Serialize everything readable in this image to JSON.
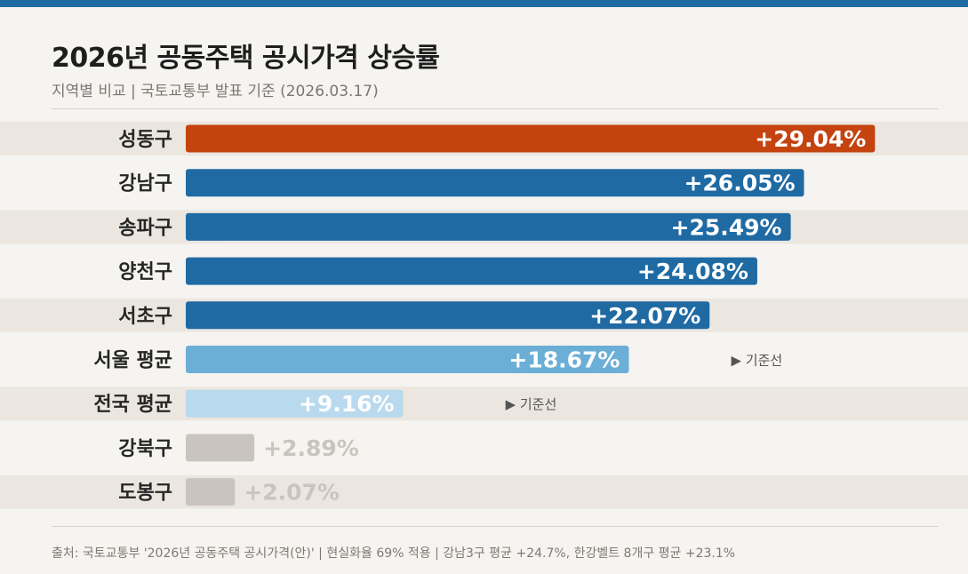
{
  "header": {
    "title": "2026년 공동주택 공시가격 상승률",
    "subtitle": "지역별 비교 | 국토교통부 발표 기준 (2026.03.17)"
  },
  "footer": {
    "source": "출처: 국토교통부 '2026년 공동주택 공시가격(안)' | 현실화율 69% 적용 | 강남3구 평균 +24.7%, 한강벨트 8개구 평균 +23.1%"
  },
  "colors": {
    "highlight": "#c4430f",
    "primary": "#1f6aa3",
    "seoul_avg": "#6baed6",
    "national_avg": "#b9d9ee",
    "low": "#c9c4be"
  },
  "chart_data": {
    "type": "bar",
    "orientation": "horizontal",
    "categories": [
      "성동구",
      "강남구",
      "송파구",
      "양천구",
      "서초구",
      "서울 평균",
      "전국 평균",
      "강북구",
      "도봉구"
    ],
    "values": [
      29.04,
      26.05,
      25.49,
      24.08,
      22.07,
      18.67,
      9.16,
      2.89,
      2.07
    ],
    "value_labels": [
      "+29.04%",
      "+26.05%",
      "+25.49%",
      "+24.08%",
      "+22.07%",
      "+18.67%",
      "+9.16%",
      "+2.89%",
      "+2.07%"
    ],
    "color_keys": [
      "highlight",
      "primary",
      "primary",
      "primary",
      "primary",
      "seoul_avg",
      "national_avg",
      "low",
      "low"
    ],
    "reference_label": "▶ 기준선",
    "reference_rows": [
      5,
      6
    ],
    "xlim": [
      0,
      30
    ]
  }
}
